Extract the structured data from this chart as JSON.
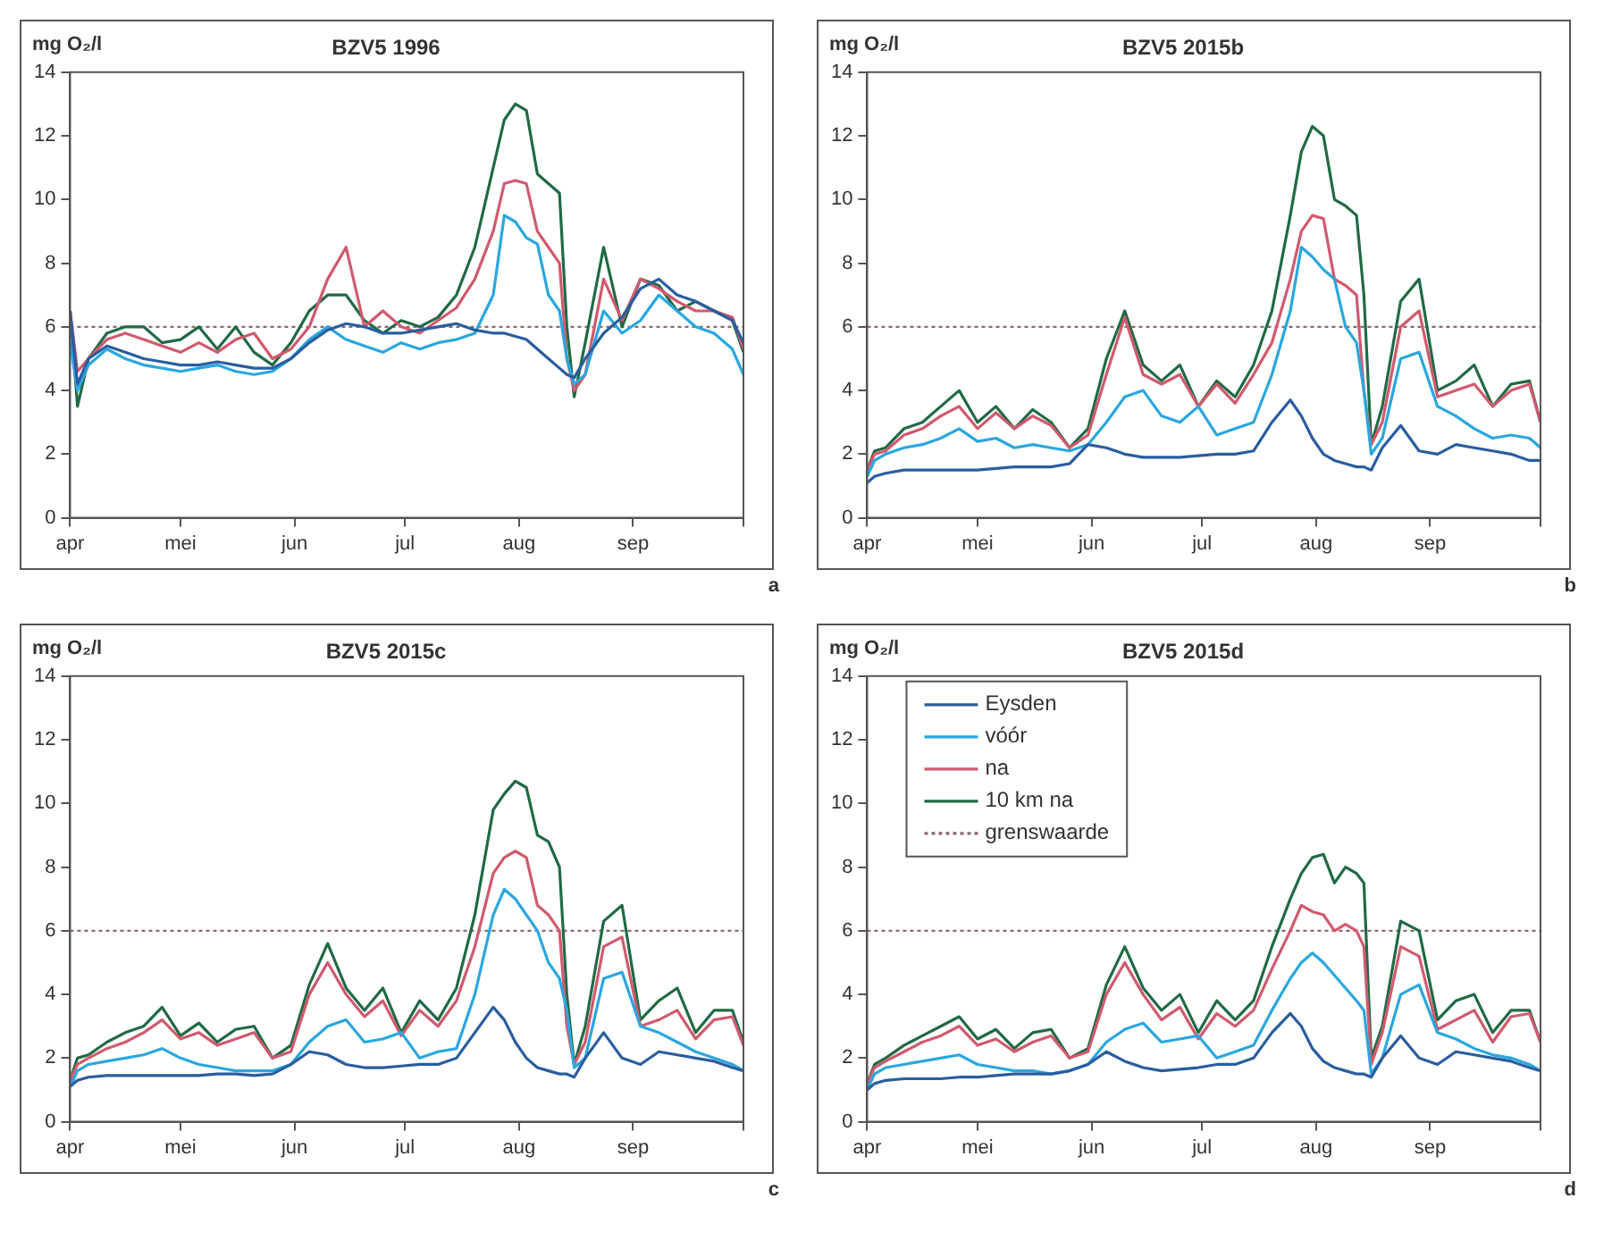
{
  "chart_data": [
    {
      "type": "line",
      "title": "BZV5 1996",
      "ylabel": "mg O₂/l",
      "annotations": [
        "a"
      ],
      "x": [
        "--04-01",
        "--04-03",
        "--04-06",
        "--04-11",
        "--04-16",
        "--04-21",
        "--04-26",
        "--05-01",
        "--05-06",
        "--05-11",
        "--05-16",
        "--05-21",
        "--05-26",
        "--05-31",
        "--06-05",
        "--06-10",
        "--06-15",
        "--06-20",
        "--06-25",
        "--06-30",
        "--07-05",
        "--07-10",
        "--07-15",
        "--07-20",
        "--07-25",
        "--07-28",
        "--07-31",
        "--08-03",
        "--08-06",
        "--08-09",
        "--08-12",
        "--08-14",
        "--08-16",
        "--08-19",
        "--08-24",
        "--08-29",
        "--09-03",
        "--09-08",
        "--09-13",
        "--09-18",
        "--09-23",
        "--09-28",
        "--10-01"
      ],
      "xlim": [
        "--04-01",
        "--10-01"
      ],
      "xticks": [
        {
          "value": "--04-01",
          "label": "apr"
        },
        {
          "value": "--05-01",
          "label": "mei"
        },
        {
          "value": "--06-01",
          "label": "jun"
        },
        {
          "value": "--07-01",
          "label": "jul"
        },
        {
          "value": "--08-01",
          "label": "aug"
        },
        {
          "value": "--09-01",
          "label": "sep"
        },
        {
          "value": "--10-01",
          "label": null
        }
      ],
      "ylim": [
        0,
        14
      ],
      "yticks": [
        0,
        2,
        4,
        6,
        8,
        10,
        12,
        14
      ],
      "grid": false,
      "marker": "none",
      "line_style": "solid",
      "ref_lines": [
        {
          "axis": "y",
          "value": 6,
          "color": "#8a6a6a",
          "line_style": "dotted"
        }
      ],
      "series": [
        {
          "color": "#2a5d9f",
          "values": [
            6.5,
            4.2,
            5.0,
            5.4,
            5.2,
            5.0,
            4.9,
            4.8,
            4.8,
            4.9,
            4.8,
            4.7,
            4.7,
            5.0,
            5.5,
            5.9,
            6.1,
            6.0,
            5.8,
            5.8,
            5.9,
            6.0,
            6.1,
            5.9,
            5.8,
            5.8,
            5.7,
            5.6,
            5.3,
            5.0,
            4.7,
            4.5,
            4.4,
            5.0,
            5.8,
            6.3,
            7.2,
            7.5,
            7.0,
            6.8,
            6.5,
            6.2,
            5.5
          ]
        },
        {
          "color": "#2aa7df",
          "values": [
            5.5,
            4.0,
            4.8,
            5.3,
            5.0,
            4.8,
            4.7,
            4.6,
            4.7,
            4.8,
            4.6,
            4.5,
            4.6,
            5.0,
            5.6,
            6.0,
            5.6,
            5.4,
            5.2,
            5.5,
            5.3,
            5.5,
            5.6,
            5.8,
            7.0,
            9.5,
            9.3,
            8.8,
            8.6,
            7.0,
            6.5,
            5.0,
            4.2,
            4.5,
            6.5,
            5.8,
            6.2,
            7.0,
            6.5,
            6.0,
            5.8,
            5.3,
            4.5
          ]
        },
        {
          "color": "#d05a6e",
          "values": [
            6.5,
            4.6,
            5.0,
            5.6,
            5.8,
            5.6,
            5.4,
            5.2,
            5.5,
            5.2,
            5.6,
            5.8,
            5.0,
            5.3,
            6.0,
            7.5,
            8.5,
            6.0,
            6.5,
            6.0,
            5.8,
            6.2,
            6.6,
            7.5,
            9.0,
            10.5,
            10.6,
            10.5,
            9.0,
            8.5,
            8.0,
            5.0,
            4.0,
            4.5,
            7.5,
            6.2,
            7.5,
            7.2,
            6.8,
            6.5,
            6.5,
            6.3,
            5.3
          ]
        },
        {
          "color": "#206a45",
          "values": [
            6.5,
            3.5,
            5.0,
            5.8,
            6.0,
            6.0,
            5.5,
            5.6,
            6.0,
            5.3,
            6.0,
            5.2,
            4.8,
            5.5,
            6.5,
            7.0,
            7.0,
            6.2,
            5.8,
            6.2,
            6.0,
            6.3,
            7.0,
            8.5,
            11.0,
            12.5,
            13.0,
            12.8,
            10.8,
            10.5,
            10.2,
            6.0,
            3.8,
            5.5,
            8.5,
            6.0,
            7.5,
            7.3,
            6.5,
            6.8,
            6.5,
            6.2,
            5.2
          ]
        }
      ]
    },
    {
      "type": "line",
      "title": "BZV5 2015b",
      "ylabel": "mg O₂/l",
      "annotations": [
        "b"
      ],
      "x": [
        "--04-01",
        "--04-03",
        "--04-06",
        "--04-11",
        "--04-16",
        "--04-21",
        "--04-26",
        "--05-01",
        "--05-06",
        "--05-11",
        "--05-16",
        "--05-21",
        "--05-26",
        "--05-31",
        "--06-05",
        "--06-10",
        "--06-15",
        "--06-20",
        "--06-25",
        "--06-30",
        "--07-05",
        "--07-10",
        "--07-15",
        "--07-20",
        "--07-25",
        "--07-28",
        "--07-31",
        "--08-03",
        "--08-06",
        "--08-09",
        "--08-12",
        "--08-14",
        "--08-16",
        "--08-19",
        "--08-24",
        "--08-29",
        "--09-03",
        "--09-08",
        "--09-13",
        "--09-18",
        "--09-23",
        "--09-28",
        "--10-01"
      ],
      "xlim": [
        "--04-01",
        "--10-01"
      ],
      "xticks": [
        {
          "value": "--04-01",
          "label": "apr"
        },
        {
          "value": "--05-01",
          "label": "mei"
        },
        {
          "value": "--06-01",
          "label": "jun"
        },
        {
          "value": "--07-01",
          "label": "jul"
        },
        {
          "value": "--08-01",
          "label": "aug"
        },
        {
          "value": "--09-01",
          "label": "sep"
        },
        {
          "value": "--10-01",
          "label": null
        }
      ],
      "ylim": [
        0,
        14
      ],
      "yticks": [
        0,
        2,
        4,
        6,
        8,
        10,
        12,
        14
      ],
      "grid": false,
      "marker": "none",
      "line_style": "solid",
      "ref_lines": [
        {
          "axis": "y",
          "value": 6,
          "color": "#8a6a6a",
          "line_style": "dotted"
        }
      ],
      "series": [
        {
          "color": "#2a5d9f",
          "values": [
            1.1,
            1.3,
            1.4,
            1.5,
            1.5,
            1.5,
            1.5,
            1.5,
            1.55,
            1.6,
            1.6,
            1.6,
            1.7,
            2.3,
            2.2,
            2.0,
            1.9,
            1.9,
            1.9,
            1.95,
            2.0,
            2.0,
            2.1,
            3.0,
            3.7,
            3.2,
            2.5,
            2.0,
            1.8,
            1.7,
            1.6,
            1.6,
            1.5,
            2.2,
            2.9,
            2.1,
            2.0,
            2.3,
            2.2,
            2.1,
            2.0,
            1.8,
            1.8
          ]
        },
        {
          "color": "#2aa7df",
          "values": [
            1.3,
            1.8,
            2.0,
            2.2,
            2.3,
            2.5,
            2.8,
            2.4,
            2.5,
            2.2,
            2.3,
            2.2,
            2.1,
            2.3,
            3.0,
            3.8,
            4.0,
            3.2,
            3.0,
            3.5,
            2.6,
            2.8,
            3.0,
            4.5,
            6.5,
            8.5,
            8.2,
            7.8,
            7.5,
            6.0,
            5.5,
            4.0,
            2.0,
            2.5,
            5.0,
            5.2,
            3.5,
            3.2,
            2.8,
            2.5,
            2.6,
            2.5,
            2.2
          ]
        },
        {
          "color": "#d05a6e",
          "values": [
            1.5,
            2.0,
            2.1,
            2.6,
            2.8,
            3.2,
            3.5,
            2.8,
            3.3,
            2.8,
            3.2,
            2.9,
            2.2,
            2.6,
            4.5,
            6.3,
            4.5,
            4.2,
            4.5,
            3.5,
            4.2,
            3.6,
            4.5,
            5.5,
            7.5,
            9.0,
            9.5,
            9.4,
            7.5,
            7.3,
            7.0,
            4.0,
            2.3,
            3.0,
            6.0,
            6.5,
            3.8,
            4.0,
            4.2,
            3.5,
            4.0,
            4.2,
            3.0
          ]
        },
        {
          "color": "#206a45",
          "values": [
            1.5,
            2.1,
            2.2,
            2.8,
            3.0,
            3.5,
            4.0,
            3.0,
            3.5,
            2.8,
            3.4,
            3.0,
            2.2,
            2.8,
            5.0,
            6.5,
            4.8,
            4.3,
            4.8,
            3.5,
            4.3,
            3.8,
            4.8,
            6.5,
            9.5,
            11.5,
            12.3,
            12.0,
            10.0,
            9.8,
            9.5,
            7.0,
            2.3,
            3.5,
            6.8,
            7.5,
            4.0,
            4.3,
            4.8,
            3.5,
            4.2,
            4.3,
            3.0
          ]
        }
      ]
    },
    {
      "type": "line",
      "title": "BZV5 2015c",
      "ylabel": "mg O₂/l",
      "annotations": [
        "c"
      ],
      "x": [
        "--04-01",
        "--04-03",
        "--04-06",
        "--04-11",
        "--04-16",
        "--04-21",
        "--04-26",
        "--05-01",
        "--05-06",
        "--05-11",
        "--05-16",
        "--05-21",
        "--05-26",
        "--05-31",
        "--06-05",
        "--06-10",
        "--06-15",
        "--06-20",
        "--06-25",
        "--06-30",
        "--07-05",
        "--07-10",
        "--07-15",
        "--07-20",
        "--07-25",
        "--07-28",
        "--07-31",
        "--08-03",
        "--08-06",
        "--08-09",
        "--08-12",
        "--08-14",
        "--08-16",
        "--08-19",
        "--08-24",
        "--08-29",
        "--09-03",
        "--09-08",
        "--09-13",
        "--09-18",
        "--09-23",
        "--09-28",
        "--10-01"
      ],
      "xlim": [
        "--04-01",
        "--10-01"
      ],
      "xticks": [
        {
          "value": "--04-01",
          "label": "apr"
        },
        {
          "value": "--05-01",
          "label": "mei"
        },
        {
          "value": "--06-01",
          "label": "jun"
        },
        {
          "value": "--07-01",
          "label": "jul"
        },
        {
          "value": "--08-01",
          "label": "aug"
        },
        {
          "value": "--09-01",
          "label": "sep"
        },
        {
          "value": "--10-01",
          "label": null
        }
      ],
      "ylim": [
        0,
        14
      ],
      "yticks": [
        0,
        2,
        4,
        6,
        8,
        10,
        12,
        14
      ],
      "grid": false,
      "marker": "none",
      "line_style": "solid",
      "ref_lines": [
        {
          "axis": "y",
          "value": 6,
          "color": "#8a6a6a",
          "line_style": "dotted"
        }
      ],
      "series": [
        {
          "color": "#2a5d9f",
          "values": [
            1.1,
            1.3,
            1.4,
            1.45,
            1.45,
            1.45,
            1.45,
            1.45,
            1.45,
            1.5,
            1.5,
            1.45,
            1.5,
            1.8,
            2.2,
            2.1,
            1.8,
            1.7,
            1.7,
            1.75,
            1.8,
            1.8,
            2.0,
            2.8,
            3.6,
            3.2,
            2.5,
            2.0,
            1.7,
            1.6,
            1.5,
            1.5,
            1.4,
            2.0,
            2.8,
            2.0,
            1.8,
            2.2,
            2.1,
            2.0,
            1.9,
            1.7,
            1.6
          ]
        },
        {
          "color": "#2aa7df",
          "values": [
            1.1,
            1.6,
            1.8,
            1.9,
            2.0,
            2.1,
            2.3,
            2.0,
            1.8,
            1.7,
            1.6,
            1.6,
            1.6,
            1.8,
            2.5,
            3.0,
            3.2,
            2.5,
            2.6,
            2.8,
            2.0,
            2.2,
            2.3,
            4.0,
            6.5,
            7.3,
            7.0,
            6.5,
            6.0,
            5.0,
            4.5,
            3.5,
            1.7,
            2.0,
            4.5,
            4.7,
            3.0,
            2.8,
            2.5,
            2.2,
            2.0,
            1.8,
            1.6
          ]
        },
        {
          "color": "#d05a6e",
          "values": [
            1.3,
            1.8,
            2.0,
            2.3,
            2.5,
            2.8,
            3.2,
            2.6,
            2.8,
            2.4,
            2.6,
            2.8,
            2.0,
            2.2,
            4.0,
            5.0,
            4.0,
            3.3,
            3.8,
            2.7,
            3.5,
            3.0,
            3.8,
            5.5,
            7.8,
            8.3,
            8.5,
            8.3,
            6.8,
            6.5,
            6.0,
            3.0,
            1.8,
            2.5,
            5.5,
            5.8,
            3.0,
            3.2,
            3.5,
            2.6,
            3.2,
            3.3,
            2.4
          ]
        },
        {
          "color": "#206a45",
          "values": [
            1.3,
            2.0,
            2.1,
            2.5,
            2.8,
            3.0,
            3.6,
            2.7,
            3.1,
            2.5,
            2.9,
            3.0,
            2.0,
            2.4,
            4.3,
            5.6,
            4.2,
            3.5,
            4.2,
            2.8,
            3.8,
            3.2,
            4.2,
            6.5,
            9.8,
            10.3,
            10.7,
            10.5,
            9.0,
            8.8,
            8.0,
            4.0,
            1.8,
            3.0,
            6.3,
            6.8,
            3.2,
            3.8,
            4.2,
            2.8,
            3.5,
            3.5,
            2.5
          ]
        }
      ]
    },
    {
      "type": "line",
      "title": "BZV5 2015d",
      "ylabel": "mg O₂/l",
      "annotations": [
        "d"
      ],
      "legend": "top left",
      "x": [
        "--04-01",
        "--04-03",
        "--04-06",
        "--04-11",
        "--04-16",
        "--04-21",
        "--04-26",
        "--05-01",
        "--05-06",
        "--05-11",
        "--05-16",
        "--05-21",
        "--05-26",
        "--05-31",
        "--06-05",
        "--06-10",
        "--06-15",
        "--06-20",
        "--06-25",
        "--06-30",
        "--07-05",
        "--07-10",
        "--07-15",
        "--07-20",
        "--07-25",
        "--07-28",
        "--07-31",
        "--08-03",
        "--08-06",
        "--08-09",
        "--08-12",
        "--08-14",
        "--08-16",
        "--08-19",
        "--08-24",
        "--08-29",
        "--09-03",
        "--09-08",
        "--09-13",
        "--09-18",
        "--09-23",
        "--09-28",
        "--10-01"
      ],
      "xlim": [
        "--04-01",
        "--10-01"
      ],
      "xticks": [
        {
          "value": "--04-01",
          "label": "apr"
        },
        {
          "value": "--05-01",
          "label": "mei"
        },
        {
          "value": "--06-01",
          "label": "jun"
        },
        {
          "value": "--07-01",
          "label": "jul"
        },
        {
          "value": "--08-01",
          "label": "aug"
        },
        {
          "value": "--09-01",
          "label": "sep"
        },
        {
          "value": "--10-01",
          "label": null
        }
      ],
      "ylim": [
        0,
        14
      ],
      "yticks": [
        0,
        2,
        4,
        6,
        8,
        10,
        12,
        14
      ],
      "grid": false,
      "marker": "none",
      "line_style": "solid",
      "ref_lines": [
        {
          "axis": "y",
          "value": 6,
          "label": "grenswaarde",
          "color": "#8a6a6a",
          "line_style": "dotted"
        }
      ],
      "series": [
        {
          "name": "Eysden",
          "color": "#2a5d9f",
          "values": [
            1.0,
            1.2,
            1.3,
            1.35,
            1.35,
            1.35,
            1.4,
            1.4,
            1.45,
            1.5,
            1.5,
            1.5,
            1.6,
            1.8,
            2.2,
            1.9,
            1.7,
            1.6,
            1.65,
            1.7,
            1.8,
            1.8,
            2.0,
            2.8,
            3.4,
            3.0,
            2.3,
            1.9,
            1.7,
            1.6,
            1.5,
            1.5,
            1.4,
            2.0,
            2.7,
            2.0,
            1.8,
            2.2,
            2.1,
            2.0,
            1.9,
            1.7,
            1.6
          ]
        },
        {
          "name": "vóór",
          "color": "#2aa7df",
          "values": [
            1.0,
            1.5,
            1.7,
            1.8,
            1.9,
            2.0,
            2.1,
            1.8,
            1.7,
            1.6,
            1.6,
            1.5,
            1.6,
            1.8,
            2.5,
            2.9,
            3.1,
            2.5,
            2.6,
            2.7,
            2.0,
            2.2,
            2.4,
            3.5,
            4.5,
            5.0,
            5.3,
            5.0,
            4.6,
            4.2,
            3.8,
            3.5,
            1.5,
            2.0,
            4.0,
            4.3,
            2.8,
            2.6,
            2.3,
            2.1,
            2.0,
            1.8,
            1.6
          ]
        },
        {
          "name": "na",
          "color": "#d05a6e",
          "values": [
            1.2,
            1.7,
            1.9,
            2.2,
            2.5,
            2.7,
            3.0,
            2.4,
            2.6,
            2.2,
            2.5,
            2.7,
            2.0,
            2.2,
            4.0,
            5.0,
            4.0,
            3.2,
            3.6,
            2.6,
            3.4,
            3.0,
            3.5,
            4.8,
            6.0,
            6.8,
            6.6,
            6.5,
            6.0,
            6.2,
            6.0,
            5.5,
            1.8,
            2.8,
            5.5,
            5.2,
            2.9,
            3.2,
            3.5,
            2.5,
            3.3,
            3.4,
            2.5
          ]
        },
        {
          "name": "10 km na",
          "color": "#206a45",
          "values": [
            1.2,
            1.8,
            2.0,
            2.4,
            2.7,
            3.0,
            3.3,
            2.6,
            2.9,
            2.3,
            2.8,
            2.9,
            2.0,
            2.3,
            4.3,
            5.5,
            4.2,
            3.5,
            4.0,
            2.8,
            3.8,
            3.2,
            3.8,
            5.5,
            7.0,
            7.8,
            8.3,
            8.4,
            7.5,
            8.0,
            7.8,
            7.5,
            2.0,
            3.0,
            6.3,
            6.0,
            3.2,
            3.8,
            4.0,
            2.8,
            3.5,
            3.5,
            2.5
          ]
        }
      ]
    }
  ]
}
